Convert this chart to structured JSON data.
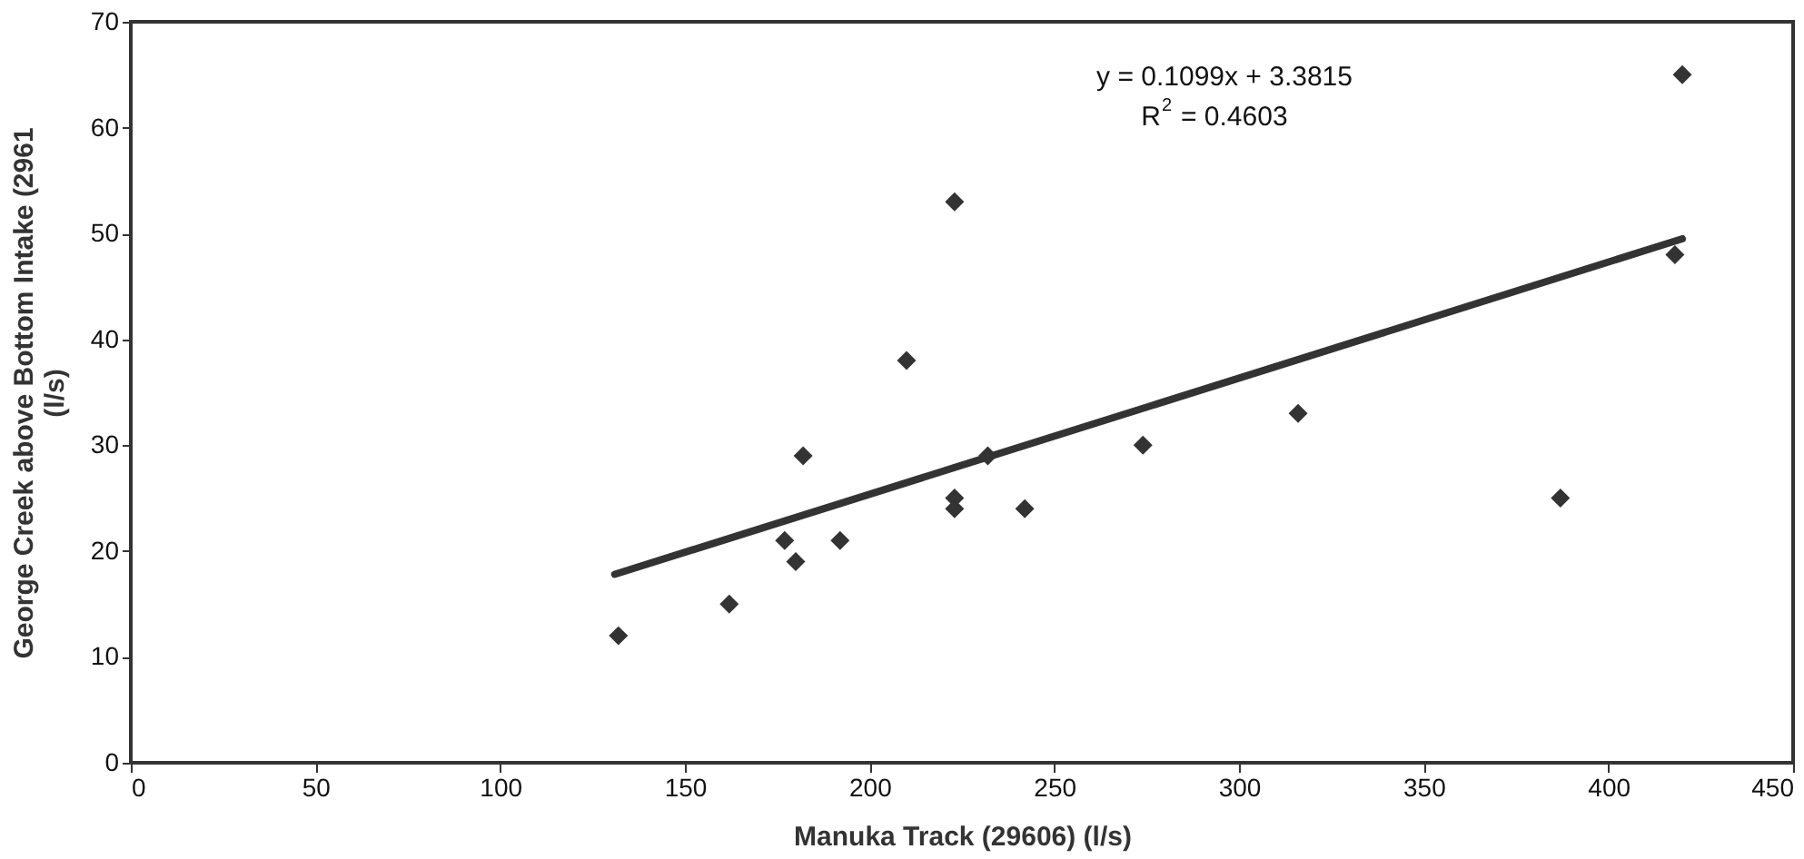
{
  "chart_data": {
    "type": "scatter",
    "xlabel": "Manuka Track (29606) (l/s)",
    "ylabel": "George Creek above Bottom Intake (2961\n(l/s)",
    "x": [
      132,
      162,
      177,
      180,
      182,
      192,
      210,
      223,
      223,
      223,
      232,
      242,
      274,
      316,
      387,
      418,
      420
    ],
    "series": [
      {
        "color": "#333333",
        "marker": "diamond",
        "values": [
          12,
          15,
          21,
          19,
          29,
          21,
          38,
          53,
          25,
          24,
          29,
          24,
          30,
          33,
          25,
          48,
          65
        ]
      },
      {
        "type": "line",
        "color": "#333333",
        "x": [
          131,
          420
        ],
        "values": [
          17.8,
          49.5
        ]
      }
    ],
    "annotations": [
      "y = 0.1099x + 3.3815",
      "R$^{2}$ = 0.4603"
    ],
    "xlim": [
      0,
      450
    ],
    "xticks": [
      0,
      50,
      100,
      150,
      200,
      250,
      300,
      350,
      400,
      450
    ],
    "ylim": [
      0,
      70
    ],
    "yticks": [
      0,
      10,
      20,
      30,
      40,
      50,
      60,
      70
    ],
    "grid": false
  }
}
